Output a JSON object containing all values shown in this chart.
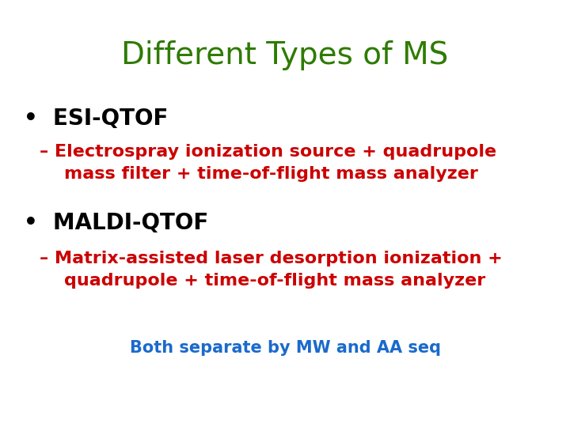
{
  "title": "Different Types of MS",
  "title_color": "#2E7B00",
  "title_fontsize": 28,
  "title_fontweight": "normal",
  "background_color": "#ffffff",
  "bullet1_label": "•  ESI-QTOF",
  "bullet1_color": "#000000",
  "bullet1_fontsize": 20,
  "bullet1_fontweight": "bold",
  "sub1_line1": "– Electrospray ionization source + quadrupole",
  "sub1_line2": "    mass filter + time-of-flight mass analyzer",
  "sub1_color": "#cc0000",
  "sub1_fontsize": 16,
  "sub1_fontweight": "bold",
  "bullet2_label": "•  MALDI-QTOF",
  "bullet2_color": "#000000",
  "bullet2_fontsize": 20,
  "bullet2_fontweight": "bold",
  "sub2_line1": "– Matrix-assisted laser desorption ionization +",
  "sub2_line2": "    quadrupole + time-of-flight mass analyzer",
  "sub2_color": "#cc0000",
  "sub2_fontsize": 16,
  "sub2_fontweight": "bold",
  "footer": "Both separate by MW and AA seq",
  "footer_color": "#1a6acc",
  "footer_fontsize": 15,
  "footer_fontweight": "bold"
}
